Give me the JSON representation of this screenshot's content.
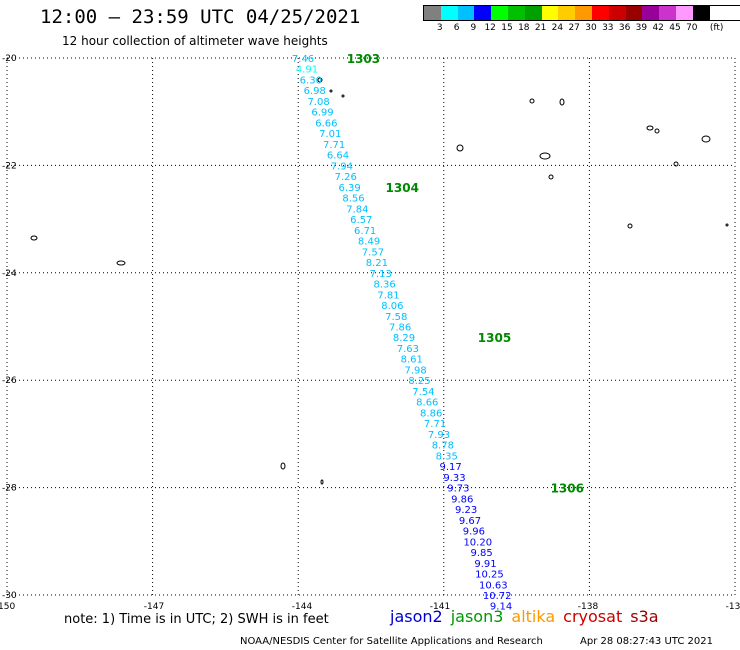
{
  "header": {
    "title": "12:00 — 23:59 UTC 04/25/2021",
    "subtitle": "12 hour collection of altimeter wave heights"
  },
  "legend": {
    "unit": "(ft)",
    "colors": [
      "#808080",
      "#00ffff",
      "#00c0ff",
      "#0000ff",
      "#00ff00",
      "#00c000",
      "#00a000",
      "#ffff00",
      "#ffcc00",
      "#ff9900",
      "#ff0000",
      "#cc0000",
      "#990000",
      "#990099",
      "#cc33cc",
      "#ff99ff",
      "#000000"
    ],
    "labels": [
      "3",
      "6",
      "9",
      "12",
      "15",
      "18",
      "21",
      "24",
      "27",
      "30",
      "33",
      "36",
      "39",
      "42",
      "45",
      "70"
    ]
  },
  "map": {
    "lat_labels": [
      "-20",
      "-22",
      "-24",
      "-26",
      "-28",
      "-30"
    ],
    "lon_labels": [
      "-150",
      "-147",
      "-144",
      "-141",
      "-138",
      "-13"
    ]
  },
  "chart_data": {
    "type": "scatter",
    "swh_unit": "feet",
    "time_labels": [
      {
        "label": "1303",
        "lat": -20.0,
        "lon": -143.0
      },
      {
        "label": "1304",
        "lat": -22.4,
        "lon": -142.2
      },
      {
        "label": "1305",
        "lat": -25.2,
        "lon": -140.3
      },
      {
        "label": "1306",
        "lat": -28.0,
        "lon": -138.8
      }
    ],
    "points": [
      {
        "v": "7.46",
        "lat": -20.0,
        "lon": -143.9
      },
      {
        "v": "4.91",
        "lat": -20.2,
        "lon": -143.82
      },
      {
        "v": "6.30",
        "lat": -20.4,
        "lon": -143.74
      },
      {
        "v": "6.98",
        "lat": -20.6,
        "lon": -143.66
      },
      {
        "v": "7.08",
        "lat": -20.8,
        "lon": -143.58
      },
      {
        "v": "6.99",
        "lat": -21.0,
        "lon": -143.5
      },
      {
        "v": "6.66",
        "lat": -21.2,
        "lon": -143.42
      },
      {
        "v": "7.01",
        "lat": -21.4,
        "lon": -143.34
      },
      {
        "v": "7.71",
        "lat": -21.6,
        "lon": -143.26
      },
      {
        "v": "6.64",
        "lat": -21.8,
        "lon": -143.18
      },
      {
        "v": "7.94",
        "lat": -22.0,
        "lon": -143.1
      },
      {
        "v": "7.26",
        "lat": -22.2,
        "lon": -143.02
      },
      {
        "v": "6.39",
        "lat": -22.4,
        "lon": -142.94
      },
      {
        "v": "8.56",
        "lat": -22.6,
        "lon": -142.86
      },
      {
        "v": "7.84",
        "lat": -22.8,
        "lon": -142.78
      },
      {
        "v": "6.57",
        "lat": -23.0,
        "lon": -142.7
      },
      {
        "v": "6.71",
        "lat": -23.2,
        "lon": -142.62
      },
      {
        "v": "8.49",
        "lat": -23.4,
        "lon": -142.54
      },
      {
        "v": "7.57",
        "lat": -23.6,
        "lon": -142.46
      },
      {
        "v": "8.21",
        "lat": -23.8,
        "lon": -142.38
      },
      {
        "v": "7.13",
        "lat": -24.0,
        "lon": -142.3
      },
      {
        "v": "8.36",
        "lat": -24.2,
        "lon": -142.22
      },
      {
        "v": "7.81",
        "lat": -24.4,
        "lon": -142.14
      },
      {
        "v": "8.06",
        "lat": -24.6,
        "lon": -142.06
      },
      {
        "v": "7.58",
        "lat": -24.8,
        "lon": -141.98
      },
      {
        "v": "7.86",
        "lat": -25.0,
        "lon": -141.9
      },
      {
        "v": "8.29",
        "lat": -25.2,
        "lon": -141.82
      },
      {
        "v": "7.63",
        "lat": -25.4,
        "lon": -141.74
      },
      {
        "v": "8.61",
        "lat": -25.6,
        "lon": -141.66
      },
      {
        "v": "7.98",
        "lat": -25.8,
        "lon": -141.58
      },
      {
        "v": "8.25",
        "lat": -26.0,
        "lon": -141.5
      },
      {
        "v": "7.54",
        "lat": -26.2,
        "lon": -141.42
      },
      {
        "v": "8.66",
        "lat": -26.4,
        "lon": -141.34
      },
      {
        "v": "8.86",
        "lat": -26.6,
        "lon": -141.26
      },
      {
        "v": "7.71",
        "lat": -26.8,
        "lon": -141.18
      },
      {
        "v": "7.93",
        "lat": -27.0,
        "lon": -141.1
      },
      {
        "v": "8.78",
        "lat": -27.2,
        "lon": -141.02
      },
      {
        "v": "8.35",
        "lat": -27.4,
        "lon": -140.94
      },
      {
        "v": "9.17",
        "lat": -27.6,
        "lon": -140.86
      },
      {
        "v": "9.33",
        "lat": -27.8,
        "lon": -140.78
      },
      {
        "v": "9.73",
        "lat": -28.0,
        "lon": -140.7
      },
      {
        "v": "9.86",
        "lat": -28.2,
        "lon": -140.62
      },
      {
        "v": "9.23",
        "lat": -28.4,
        "lon": -140.54
      },
      {
        "v": "9.67",
        "lat": -28.6,
        "lon": -140.46
      },
      {
        "v": "9.96",
        "lat": -28.8,
        "lon": -140.38
      },
      {
        "v": "10.20",
        "lat": -29.0,
        "lon": -140.3
      },
      {
        "v": "9.85",
        "lat": -29.2,
        "lon": -140.22
      },
      {
        "v": "9.91",
        "lat": -29.4,
        "lon": -140.14
      },
      {
        "v": "10.25",
        "lat": -29.6,
        "lon": -140.06
      },
      {
        "v": "10.63",
        "lat": -29.8,
        "lon": -139.98
      },
      {
        "v": "10.72",
        "lat": -30.0,
        "lon": -139.9
      },
      {
        "v": "9.14",
        "lat": -30.2,
        "lon": -139.82
      }
    ]
  },
  "footer": {
    "note": "note:  1) Time is in UTC;  2) SWH is in feet",
    "satellites": [
      {
        "name": "jason2",
        "color": "#0000cc"
      },
      {
        "name": "jason3",
        "color": "#009900"
      },
      {
        "name": "altika",
        "color": "#ff9900"
      },
      {
        "name": "cryosat",
        "color": "#cc0000"
      },
      {
        "name": "s3a",
        "color": "#990000"
      }
    ],
    "credit": "NOAA/NESDIS Center for Satellite Applications and Research",
    "timestamp": "Apr 28 08:27:43 UTC 2021"
  }
}
